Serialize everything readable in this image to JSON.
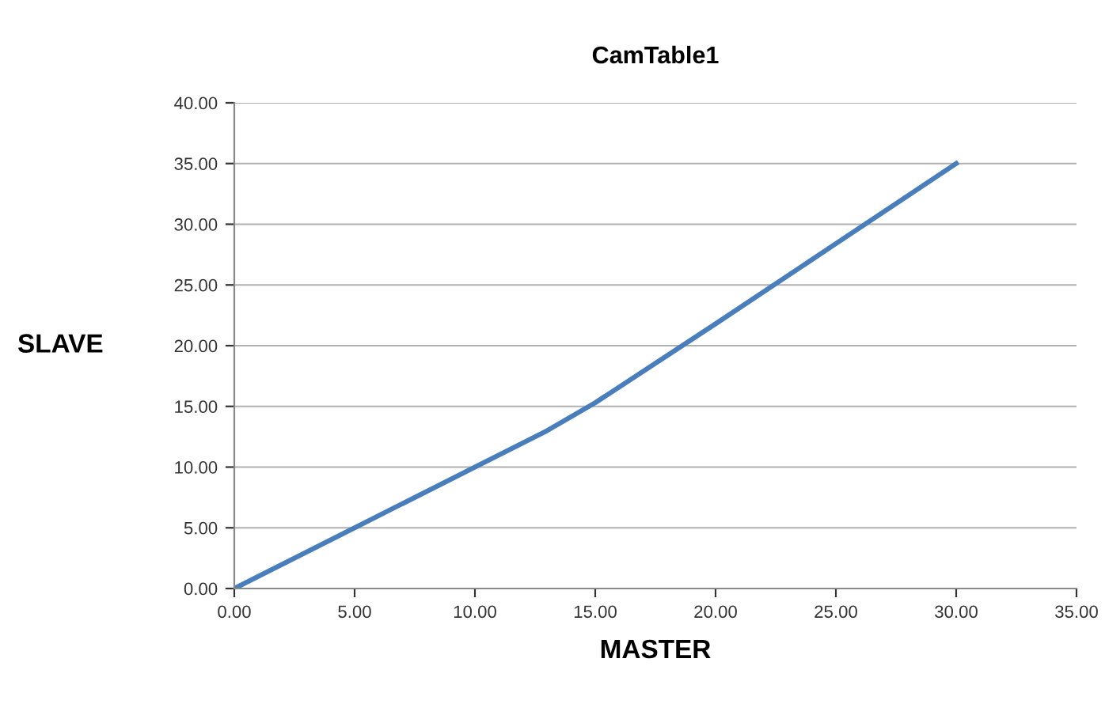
{
  "chart_data": {
    "type": "line",
    "title": "CamTable1",
    "xlabel": "MASTER",
    "ylabel": "SLAVE",
    "x": [
      0,
      5,
      10,
      13,
      15,
      20,
      25,
      30
    ],
    "series": [
      {
        "color": "#4a7ebb",
        "values": [
          0,
          5,
          10,
          13,
          15.3,
          21.8,
          28.4,
          35
        ]
      }
    ],
    "xlim": [
      0,
      35
    ],
    "ylim": [
      0,
      40
    ],
    "xticks": [
      {
        "value": 0,
        "label": "0.00"
      },
      {
        "value": 5,
        "label": "5.00"
      },
      {
        "value": 10,
        "label": "10.00"
      },
      {
        "value": 15,
        "label": "15.00"
      },
      {
        "value": 20,
        "label": "20.00"
      },
      {
        "value": 25,
        "label": "25.00"
      },
      {
        "value": 30,
        "label": "30.00"
      },
      {
        "value": 35,
        "label": "35.00"
      }
    ],
    "yticks": [
      {
        "value": 0,
        "label": "0.00"
      },
      {
        "value": 5,
        "label": "5.00"
      },
      {
        "value": 10,
        "label": "10.00"
      },
      {
        "value": 15,
        "label": "15.00"
      },
      {
        "value": 20,
        "label": "20.00"
      },
      {
        "value": 25,
        "label": "25.00"
      },
      {
        "value": 30,
        "label": "30.00"
      },
      {
        "value": 35,
        "label": "35.00"
      },
      {
        "value": 40,
        "label": "40.00"
      }
    ],
    "grid": "y",
    "legend": false,
    "marker": "none",
    "line_style": "solid"
  }
}
